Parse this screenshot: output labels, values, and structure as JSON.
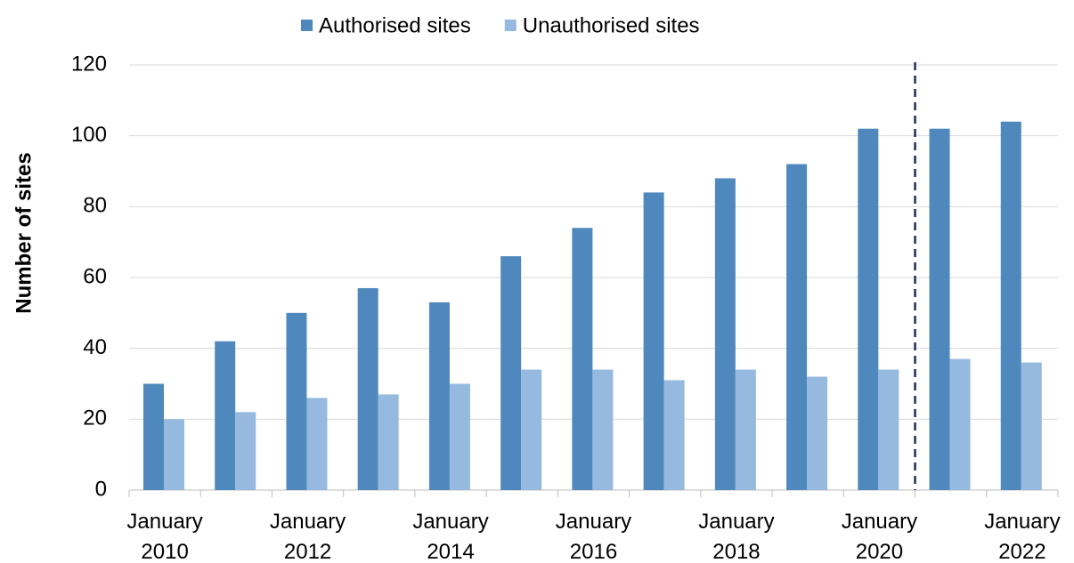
{
  "chart_data": {
    "type": "bar",
    "y_label": "Number of sites",
    "categories": [
      "January 2010",
      null,
      "January 2012",
      null,
      "January 2014",
      null,
      "January 2016",
      null,
      "January 2018",
      null,
      "January 2020",
      null,
      "January 2022"
    ],
    "series": [
      {
        "name": "Authorised sites",
        "color": "#4f88bd",
        "values": [
          30,
          42,
          50,
          57,
          53,
          66,
          74,
          84,
          88,
          92,
          102,
          102,
          104
        ]
      },
      {
        "name": "Unauthorised sites",
        "color": "#95b9df",
        "values": [
          20,
          22,
          26,
          27,
          30,
          34,
          34,
          31,
          34,
          32,
          34,
          37,
          36
        ]
      }
    ],
    "ylim": [
      0,
      120
    ],
    "yticks": [
      0,
      20,
      40,
      60,
      80,
      100,
      120
    ],
    "grid": true,
    "legend": "top"
  }
}
